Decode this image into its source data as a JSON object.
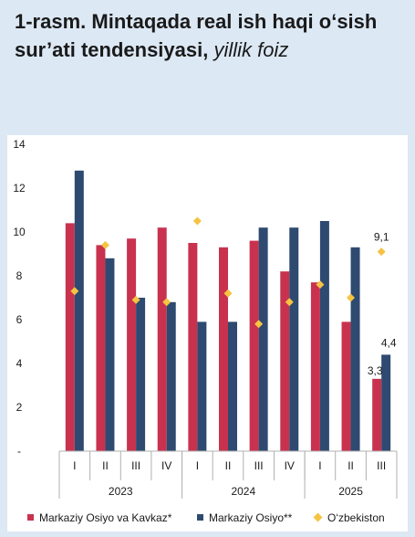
{
  "title": {
    "bold": "1-rasm. Mintaqada real ish haqi o‘sish sur’ati tendensiyasi,",
    "italic": "yillik foiz"
  },
  "colors": {
    "series1": "#c8324f",
    "series2": "#2e4a70",
    "series3": "#f6c342",
    "background": "#dce8f4"
  },
  "chart_data": {
    "type": "bar",
    "categories": [
      "I",
      "II",
      "III",
      "IV",
      "I",
      "II",
      "III",
      "IV",
      "I",
      "II",
      "III"
    ],
    "groups": [
      {
        "label": "2023",
        "count": 4
      },
      {
        "label": "2024",
        "count": 4
      },
      {
        "label": "2025",
        "count": 3
      }
    ],
    "ylim": [
      0,
      14
    ],
    "yticks": [
      "-",
      "2",
      "4",
      "6",
      "8",
      "10",
      "12",
      "14"
    ],
    "grid": false,
    "legend_position": "bottom",
    "series": [
      {
        "name": "Markaziy Osiyo va Kavkaz*",
        "type": "bar",
        "values": [
          10.4,
          9.4,
          9.7,
          10.2,
          9.5,
          9.3,
          9.6,
          8.2,
          7.7,
          5.9,
          3.3
        ]
      },
      {
        "name": "Markaziy Osiyo**",
        "type": "bar",
        "values": [
          12.8,
          8.8,
          7.0,
          6.8,
          5.9,
          5.9,
          10.2,
          10.2,
          10.5,
          9.3,
          4.4
        ]
      },
      {
        "name": "O‘zbekiston",
        "type": "marker",
        "values": [
          7.3,
          9.4,
          6.9,
          6.8,
          10.5,
          7.2,
          5.8,
          6.8,
          7.6,
          7.0,
          9.1
        ]
      }
    ],
    "data_labels": [
      {
        "series": 0,
        "index": 10,
        "text": "3,3"
      },
      {
        "series": 1,
        "index": 10,
        "text": "4,4"
      },
      {
        "series": 2,
        "index": 10,
        "text": "9,1"
      }
    ]
  }
}
